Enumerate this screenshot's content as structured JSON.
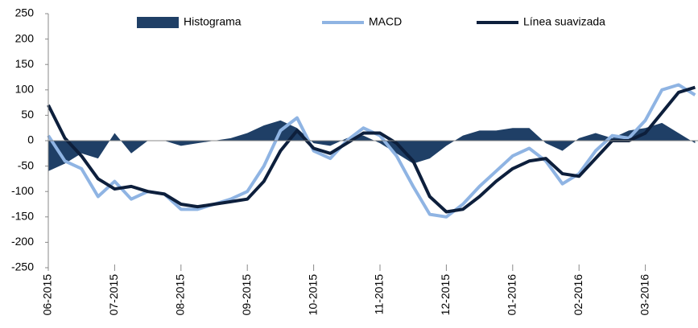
{
  "chart_data": {
    "type": "line",
    "categories": [
      "06-2015",
      null,
      null,
      null,
      "07-2015",
      null,
      null,
      null,
      "08-2015",
      null,
      null,
      null,
      "09-2015",
      null,
      null,
      null,
      "10-2015",
      null,
      null,
      null,
      "11-2015",
      null,
      null,
      null,
      "12-2015",
      null,
      null,
      null,
      "01-2016",
      null,
      null,
      null,
      "02-2016",
      null,
      null,
      null,
      "03-2016",
      null,
      null,
      null
    ],
    "series": [
      {
        "name": "Histograma",
        "kind": "area",
        "color": "#1f3f66",
        "values": [
          -60,
          -45,
          -25,
          -35,
          15,
          -25,
          0,
          0,
          -10,
          -5,
          0,
          5,
          15,
          30,
          40,
          25,
          -5,
          -10,
          5,
          10,
          -5,
          -25,
          -45,
          -35,
          -10,
          10,
          20,
          20,
          25,
          25,
          -5,
          -20,
          5,
          15,
          5,
          20,
          25,
          35,
          15,
          -5
        ]
      },
      {
        "name": "MACD",
        "kind": "line",
        "color": "#8fb4e3",
        "values": [
          10,
          -40,
          -55,
          -110,
          -80,
          -115,
          -100,
          -105,
          -135,
          -135,
          -125,
          -115,
          -100,
          -50,
          20,
          45,
          -20,
          -35,
          0,
          25,
          10,
          -30,
          -90,
          -145,
          -150,
          -125,
          -90,
          -60,
          -30,
          -15,
          -40,
          -85,
          -65,
          -20,
          10,
          5,
          40,
          100,
          110,
          90
        ]
      },
      {
        "name": "Línea suavizada",
        "kind": "line",
        "color": "#0d1f3c",
        "values": [
          70,
          5,
          -30,
          -75,
          -95,
          -90,
          -100,
          -105,
          -125,
          -130,
          -125,
          -120,
          -115,
          -80,
          -20,
          20,
          -15,
          -25,
          -5,
          15,
          15,
          -5,
          -40,
          -110,
          -140,
          -135,
          -110,
          -80,
          -55,
          -40,
          -35,
          -65,
          -70,
          -35,
          0,
          0,
          15,
          55,
          95,
          105
        ]
      }
    ],
    "ylim": [
      -250,
      250
    ],
    "yticks": [
      -250,
      -200,
      -150,
      -100,
      -50,
      0,
      50,
      100,
      150,
      200,
      250
    ]
  }
}
